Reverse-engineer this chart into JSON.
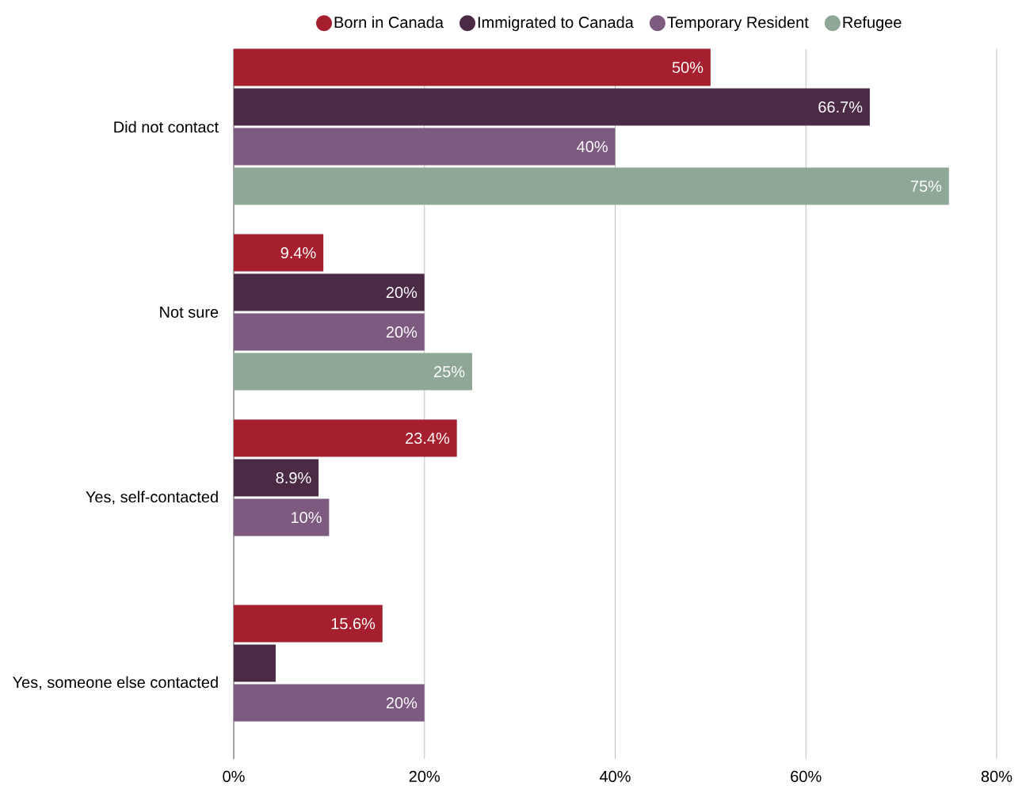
{
  "chart_data": {
    "type": "bar",
    "orientation": "horizontal",
    "categories": [
      "Did not contact",
      "Not sure",
      "Yes, self-contacted",
      "Yes, someone else contacted"
    ],
    "series": [
      {
        "name": "Born in Canada",
        "color": "#a61f2f",
        "values": [
          50,
          9.4,
          23.4,
          15.6
        ],
        "value_labels": [
          "50%",
          "9.4%",
          "23.4%",
          "15.6%"
        ]
      },
      {
        "name": "Immigrated to Canada",
        "color": "#4a2a45",
        "values": [
          66.7,
          20,
          8.9,
          4.4
        ],
        "value_labels": [
          "66.7%",
          "20%",
          "8.9%",
          null
        ]
      },
      {
        "name": "Temporary Resident",
        "color": "#7d5b80",
        "values": [
          40,
          20,
          10,
          20
        ],
        "value_labels": [
          "40%",
          "20%",
          "10%",
          "20%"
        ]
      },
      {
        "name": "Refugee",
        "color": "#8fa797",
        "values": [
          75,
          25,
          null,
          null
        ],
        "value_labels": [
          "75%",
          "25%",
          null,
          null
        ]
      }
    ],
    "xlim": [
      0,
      80
    ],
    "xticks": [
      {
        "value": 0,
        "label": "0%"
      },
      {
        "value": 20,
        "label": "20%"
      },
      {
        "value": 40,
        "label": "40%"
      },
      {
        "value": 60,
        "label": "60%"
      },
      {
        "value": 80,
        "label": "80%"
      }
    ],
    "grid": "x",
    "legend": "top"
  }
}
